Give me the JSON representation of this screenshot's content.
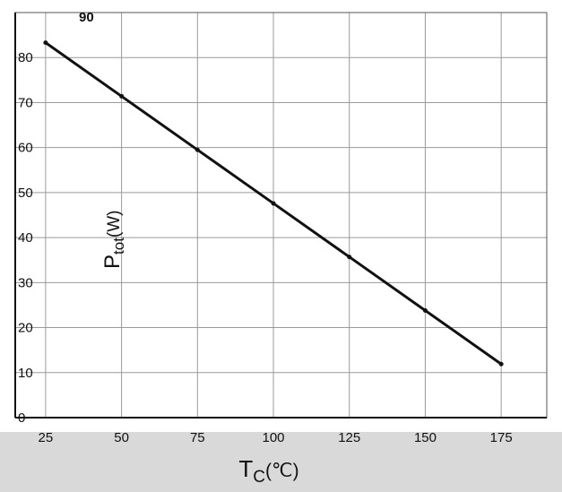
{
  "chart_data": {
    "type": "line",
    "title": "",
    "xlabel": "T",
    "xlabel_sub": "C",
    "xlabel_unit": "(℃)",
    "ylabel": "P",
    "ylabel_sub": "tot",
    "ylabel_unit": "(W)",
    "xlim": [
      15,
      190
    ],
    "ylim": [
      0,
      90
    ],
    "x_ticks": [
      25,
      50,
      75,
      100,
      125,
      150,
      175
    ],
    "y_ticks": [
      0,
      10,
      20,
      30,
      40,
      50,
      60,
      70,
      80,
      90
    ],
    "grid": true,
    "series": [
      {
        "x": [
          25,
          50,
          75,
          100,
          125,
          150,
          175
        ],
        "y": [
          83.3,
          71.4,
          59.5,
          47.6,
          35.7,
          23.8,
          11.9
        ]
      }
    ],
    "colors": {
      "line": "#111111",
      "grid": "#9a9a9a",
      "band": "#d9d9d9"
    }
  }
}
